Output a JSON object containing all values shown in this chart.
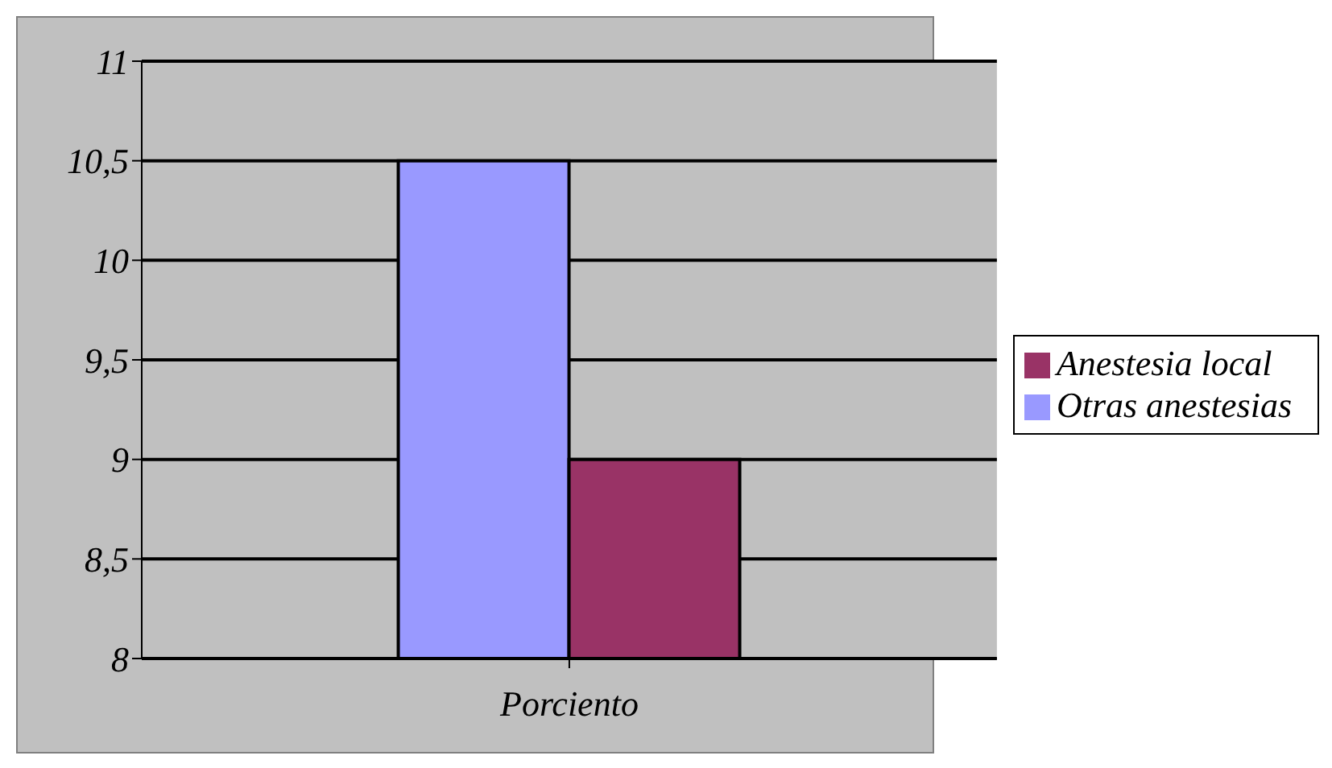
{
  "chart_data": {
    "type": "bar",
    "categories": [
      "Porciento"
    ],
    "series": [
      {
        "name": "Otras anestesias",
        "color": "#9999ff",
        "values": [
          10.5
        ]
      },
      {
        "name": "Anestesia local",
        "color": "#993366",
        "values": [
          9
        ]
      }
    ],
    "ylim": [
      8,
      11
    ],
    "yticks": [
      8,
      {
        "value": 8.5,
        "label": "8,5"
      },
      9,
      {
        "value": 9.5,
        "label": "9,5"
      },
      10,
      {
        "value": 10.5,
        "label": "10,5"
      },
      11
    ],
    "grid": "y",
    "legend": "right"
  }
}
